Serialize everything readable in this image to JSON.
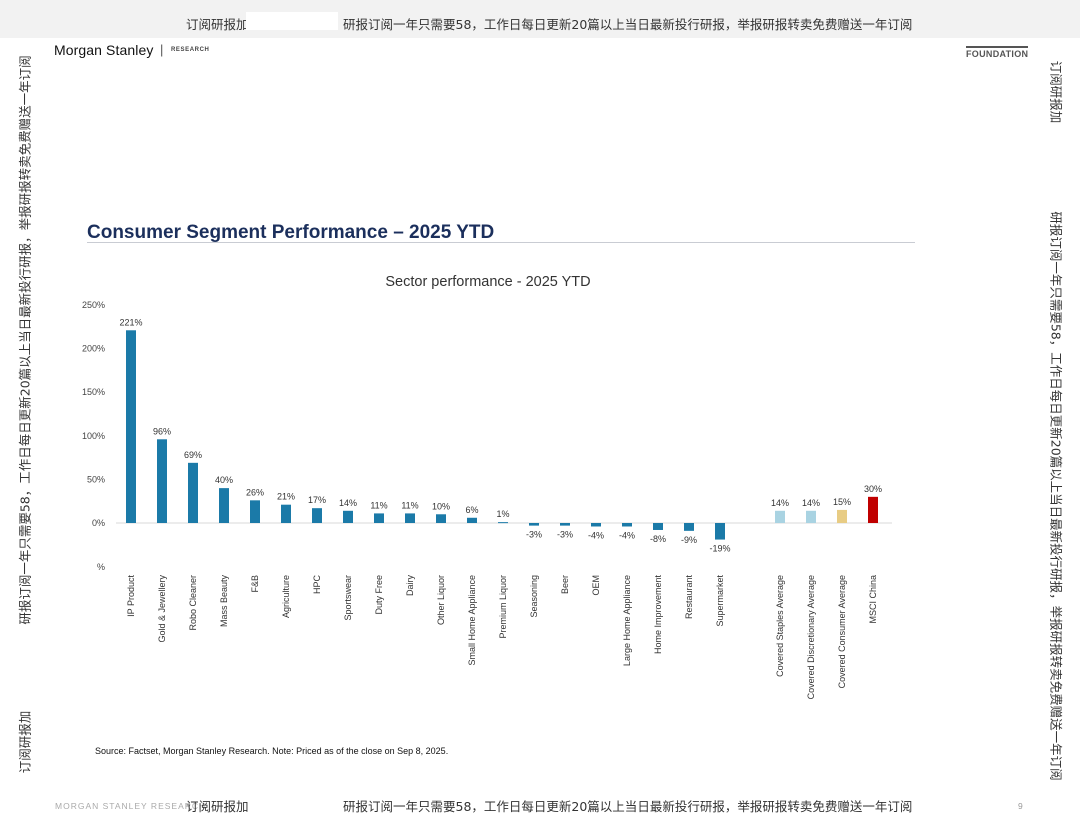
{
  "watermark": {
    "prefix": "订阅研报加",
    "line": "研报订阅一年只需要58，工作日每日更新20篇以上当日最新投行研报，举报研报转卖免费赠送一年订阅",
    "side_left": "研报订阅一年只需要58，工作日每日更新20篇以上当日最新投行研报，举报研报转卖免费赠送一年订阅",
    "side_right": "研报订阅一年只需要58，工作日每日更新20篇以上当日最新投行研报，举报研报转卖免费赠送一年订阅"
  },
  "header": {
    "brand": "Morgan Stanley",
    "separator": "|",
    "research": "RESEARCH",
    "tag": "FOUNDATION"
  },
  "slide": {
    "title": "Consumer Segment Performance – 2025 YTD",
    "source_note": "Source: Factset, Morgan Stanley Research. Note: Priced as of the close on Sep 8, 2025."
  },
  "footer": {
    "brand": "MORGAN STANLEY RESEARCH",
    "page": "9"
  },
  "colors": {
    "bar_primary": "#1b7aa8",
    "bar_staples_discretionary": "#a9d3e2",
    "bar_consumer_average": "#e8cc84",
    "bar_msci_china": "#c00000",
    "title": "#1b2f5c"
  },
  "chart_data": {
    "type": "bar",
    "title": "Sector performance - 2025 YTD",
    "ylabel": "%",
    "ylim": [
      -25,
      250
    ],
    "yticks": [
      "250%",
      "200%",
      "150%",
      "100%",
      "50%",
      "0%"
    ],
    "ytick_values": [
      250,
      200,
      150,
      100,
      50,
      0
    ],
    "categories": [
      "IP Product",
      "Gold & Jewellery",
      "Robo Cleaner",
      "Mass Beauty",
      "F&B",
      "Agriculture",
      "HPC",
      "Sportswear",
      "Duty Free",
      "Dairy",
      "Other Liquor",
      "Small Home Appliance",
      "Premium Liquor",
      "Seasoning",
      "Beer",
      "OEM",
      "Large Home Appliance",
      "Home Improvement",
      "Restaurant",
      "Supermarket",
      "Covered Staples Average",
      "Covered Discretionary Average",
      "Covered Consumer Average",
      "MSCI China"
    ],
    "values": [
      221,
      96,
      69,
      40,
      26,
      21,
      17,
      14,
      11,
      11,
      10,
      6,
      1,
      -3,
      -3,
      -4,
      -4,
      -8,
      -9,
      -19,
      14,
      14,
      15,
      30
    ],
    "labels": [
      "221%",
      "96%",
      "69%",
      "40%",
      "26%",
      "21%",
      "17%",
      "14%",
      "11%",
      "11%",
      "10%",
      "6%",
      "1%",
      "-3%",
      "-3%",
      "-4%",
      "-4%",
      "-8%",
      "-9%",
      "-19%",
      "14%",
      "14%",
      "15%",
      "30%"
    ],
    "bar_colors": [
      "#1b7aa8",
      "#1b7aa8",
      "#1b7aa8",
      "#1b7aa8",
      "#1b7aa8",
      "#1b7aa8",
      "#1b7aa8",
      "#1b7aa8",
      "#1b7aa8",
      "#1b7aa8",
      "#1b7aa8",
      "#1b7aa8",
      "#1b7aa8",
      "#1b7aa8",
      "#1b7aa8",
      "#1b7aa8",
      "#1b7aa8",
      "#1b7aa8",
      "#1b7aa8",
      "#1b7aa8",
      "#a9d3e2",
      "#a9d3e2",
      "#e8cc84",
      "#c00000"
    ],
    "grid": false,
    "legend": "none"
  }
}
